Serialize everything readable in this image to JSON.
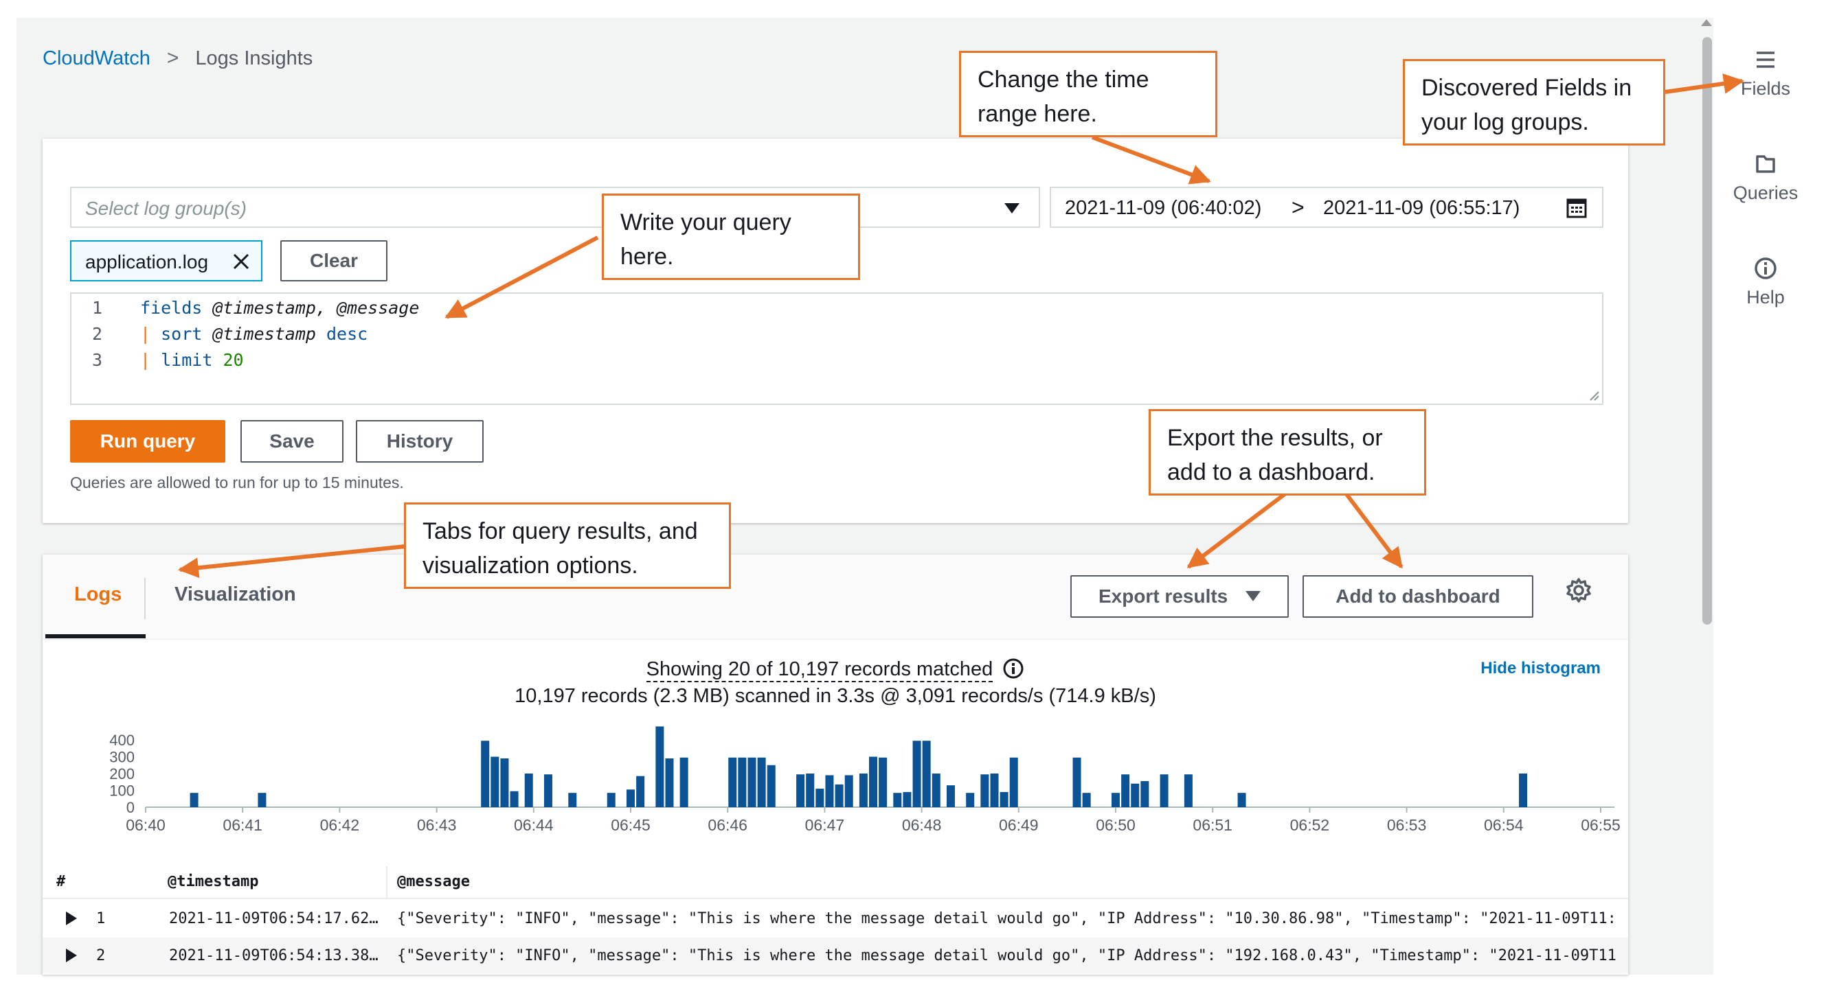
{
  "breadcrumb": {
    "root": "CloudWatch",
    "separator": ">",
    "current": "Logs Insights"
  },
  "query": {
    "log_group_placeholder": "Select log group(s)",
    "time_range": {
      "start": "2021-11-09 (06:40:02)",
      "separator": ">",
      "end": "2021-11-09 (06:55:17)"
    },
    "selected_group": "application.log",
    "clear_label": "Clear",
    "lines": [
      {
        "number": "1",
        "text": "fields @timestamp, @message"
      },
      {
        "number": "2",
        "text": "| sort @timestamp desc"
      },
      {
        "number": "3",
        "text": "| limit 20"
      }
    ],
    "run_label": "Run query",
    "save_label": "Save",
    "history_label": "History",
    "note": "Queries are allowed to run for up to 15 minutes."
  },
  "results": {
    "tabs": [
      {
        "label": "Logs",
        "active": true
      },
      {
        "label": "Visualization",
        "active": false
      }
    ],
    "export_label": "Export results",
    "dashboard_label": "Add to dashboard",
    "showing": "Showing 20 of 10,197 records matched",
    "scanned": "10,197 records (2.3 MB) scanned in 3.3s @ 3,091 records/s (714.9 kB/s)",
    "hide_histogram": "Hide histogram",
    "columns": {
      "index": "#",
      "timestamp": "@timestamp",
      "message": "@message"
    },
    "rows": [
      {
        "index": "1",
        "timestamp": "2021-11-09T06:54:17.62…",
        "message": "{\"Severity\": \"INFO\", \"message\": \"This is where the message detail would go\", \"IP Address\": \"10.30.86.98\", \"Timestamp\": \"2021-11-09T11:"
      },
      {
        "index": "2",
        "timestamp": "2021-11-09T06:54:13.38…",
        "message": "{\"Severity\": \"INFO\", \"message\": \"This is where the message detail would go\", \"IP Address\": \"192.168.0.43\", \"Timestamp\": \"2021-11-09T11"
      }
    ]
  },
  "side_panel": {
    "fields": "Fields",
    "queries": "Queries",
    "help": "Help"
  },
  "callouts": {
    "time": "Change the time range here.",
    "fields": "Discovered Fields in your log groups.",
    "query": "Write your query here.",
    "export": "Export the results, or add to a dashboard.",
    "tabs": "Tabs for query results, and visualization options."
  },
  "colors": {
    "accent": "#ec7211",
    "link": "#0073bb",
    "bar": "#0b5394",
    "callout": "#e8742a"
  },
  "chart_data": {
    "type": "bar",
    "x_ticks": [
      "06:40",
      "06:41",
      "06:42",
      "06:43",
      "06:44",
      "06:45",
      "06:46",
      "06:47",
      "06:48",
      "06:49",
      "06:50",
      "06:51",
      "06:52",
      "06:53",
      "06:54",
      "06:55"
    ],
    "y_ticks": [
      "0",
      "100",
      "200",
      "300",
      "400"
    ],
    "ylim": [
      0,
      450
    ],
    "xlim": [
      0,
      15
    ],
    "points": [
      {
        "x": 0.5,
        "y": 85
      },
      {
        "x": 1.2,
        "y": 85
      },
      {
        "x": 3.5,
        "y": 395
      },
      {
        "x": 3.6,
        "y": 300
      },
      {
        "x": 3.7,
        "y": 290
      },
      {
        "x": 3.8,
        "y": 95
      },
      {
        "x": 3.95,
        "y": 200
      },
      {
        "x": 4.15,
        "y": 195
      },
      {
        "x": 4.4,
        "y": 85
      },
      {
        "x": 4.8,
        "y": 85
      },
      {
        "x": 5.0,
        "y": 105
      },
      {
        "x": 5.1,
        "y": 185
      },
      {
        "x": 5.3,
        "y": 480
      },
      {
        "x": 5.4,
        "y": 290
      },
      {
        "x": 5.55,
        "y": 295
      },
      {
        "x": 6.05,
        "y": 295
      },
      {
        "x": 6.15,
        "y": 295
      },
      {
        "x": 6.25,
        "y": 295
      },
      {
        "x": 6.35,
        "y": 295
      },
      {
        "x": 6.45,
        "y": 250
      },
      {
        "x": 6.75,
        "y": 195
      },
      {
        "x": 6.85,
        "y": 200
      },
      {
        "x": 6.95,
        "y": 110
      },
      {
        "x": 7.05,
        "y": 190
      },
      {
        "x": 7.15,
        "y": 135
      },
      {
        "x": 7.25,
        "y": 190
      },
      {
        "x": 7.4,
        "y": 200
      },
      {
        "x": 7.5,
        "y": 300
      },
      {
        "x": 7.6,
        "y": 295
      },
      {
        "x": 7.75,
        "y": 85
      },
      {
        "x": 7.85,
        "y": 90
      },
      {
        "x": 7.95,
        "y": 395
      },
      {
        "x": 8.05,
        "y": 395
      },
      {
        "x": 8.15,
        "y": 200
      },
      {
        "x": 8.3,
        "y": 130
      },
      {
        "x": 8.5,
        "y": 85
      },
      {
        "x": 8.65,
        "y": 195
      },
      {
        "x": 8.75,
        "y": 200
      },
      {
        "x": 8.85,
        "y": 90
      },
      {
        "x": 8.95,
        "y": 295
      },
      {
        "x": 9.6,
        "y": 295
      },
      {
        "x": 9.7,
        "y": 85
      },
      {
        "x": 10.0,
        "y": 85
      },
      {
        "x": 10.1,
        "y": 195
      },
      {
        "x": 10.2,
        "y": 140
      },
      {
        "x": 10.3,
        "y": 155
      },
      {
        "x": 10.5,
        "y": 195
      },
      {
        "x": 10.75,
        "y": 195
      },
      {
        "x": 11.3,
        "y": 85
      },
      {
        "x": 14.2,
        "y": 200
      }
    ]
  }
}
